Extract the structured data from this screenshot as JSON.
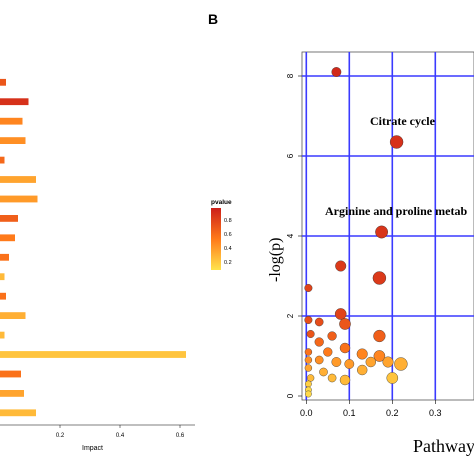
{
  "chart_data": [
    {
      "type": "bar",
      "orientation": "horizontal",
      "xlabel": "Impact",
      "x_ticks": [
        "0.2",
        "0.4",
        "0.6"
      ],
      "xlim": [
        0,
        0.65
      ],
      "bars": [
        {
          "value": 0.02,
          "pvalue": 0.7
        },
        {
          "value": 0.095,
          "pvalue": 0.9
        },
        {
          "value": 0.075,
          "pvalue": 0.45
        },
        {
          "value": 0.085,
          "pvalue": 0.4
        },
        {
          "value": 0.015,
          "pvalue": 0.6
        },
        {
          "value": 0.12,
          "pvalue": 0.3
        },
        {
          "value": 0.125,
          "pvalue": 0.35
        },
        {
          "value": 0.06,
          "pvalue": 0.65
        },
        {
          "value": 0.05,
          "pvalue": 0.5
        },
        {
          "value": 0.03,
          "pvalue": 0.55
        },
        {
          "value": 0.015,
          "pvalue": 0.2
        },
        {
          "value": 0.02,
          "pvalue": 0.55
        },
        {
          "value": 0.085,
          "pvalue": 0.25
        },
        {
          "value": 0.015,
          "pvalue": 0.2
        },
        {
          "value": 0.62,
          "pvalue": 0.15
        },
        {
          "value": 0.07,
          "pvalue": 0.55
        },
        {
          "value": 0.08,
          "pvalue": 0.3
        },
        {
          "value": 0.12,
          "pvalue": 0.2
        }
      ],
      "legend": {
        "title": "pvalue",
        "ticks": [
          "0.8",
          "0.6",
          "0.4",
          "0.2"
        ],
        "colors": [
          "#cc1f1a",
          "#ff7a1a",
          "#ffe44d"
        ]
      }
    },
    {
      "type": "scatter",
      "panel_label": "B",
      "xlabel": "Pathway",
      "ylabel": "-log(p)",
      "x_ticks": [
        "0.0",
        "0.1",
        "0.2",
        "0.3"
      ],
      "y_ticks": [
        "0",
        "2",
        "4",
        "6",
        "8"
      ],
      "xlim": [
        -0.01,
        0.39
      ],
      "ylim": [
        -0.1,
        8.6
      ],
      "grid": true,
      "grid_color": "#3a3aff",
      "annotations": [
        "Citrate cycle",
        "Arginine and proline metab"
      ],
      "points": [
        {
          "x": 0.07,
          "y": 8.1,
          "size": 0.45,
          "pvalue": 0.95
        },
        {
          "x": 0.21,
          "y": 6.35,
          "size": 0.75,
          "pvalue": 0.9
        },
        {
          "x": 0.175,
          "y": 4.1,
          "size": 0.7,
          "pvalue": 0.88
        },
        {
          "x": 0.08,
          "y": 3.25,
          "size": 0.55,
          "pvalue": 0.85
        },
        {
          "x": 0.17,
          "y": 2.95,
          "size": 0.75,
          "pvalue": 0.85
        },
        {
          "x": 0.005,
          "y": 2.7,
          "size": 0.3,
          "pvalue": 0.8
        },
        {
          "x": 0.08,
          "y": 2.05,
          "size": 0.6,
          "pvalue": 0.8
        },
        {
          "x": 0.005,
          "y": 1.9,
          "size": 0.3,
          "pvalue": 0.75
        },
        {
          "x": 0.03,
          "y": 1.85,
          "size": 0.35,
          "pvalue": 0.75
        },
        {
          "x": 0.09,
          "y": 1.8,
          "size": 0.6,
          "pvalue": 0.7
        },
        {
          "x": 0.01,
          "y": 1.55,
          "size": 0.3,
          "pvalue": 0.7
        },
        {
          "x": 0.06,
          "y": 1.5,
          "size": 0.4,
          "pvalue": 0.65
        },
        {
          "x": 0.17,
          "y": 1.5,
          "size": 0.65,
          "pvalue": 0.65
        },
        {
          "x": 0.03,
          "y": 1.35,
          "size": 0.4,
          "pvalue": 0.6
        },
        {
          "x": 0.09,
          "y": 1.2,
          "size": 0.5,
          "pvalue": 0.55
        },
        {
          "x": 0.005,
          "y": 1.1,
          "size": 0.25,
          "pvalue": 0.55
        },
        {
          "x": 0.05,
          "y": 1.1,
          "size": 0.4,
          "pvalue": 0.5
        },
        {
          "x": 0.13,
          "y": 1.05,
          "size": 0.55,
          "pvalue": 0.45
        },
        {
          "x": 0.17,
          "y": 1.0,
          "size": 0.6,
          "pvalue": 0.45
        },
        {
          "x": 0.005,
          "y": 0.9,
          "size": 0.25,
          "pvalue": 0.4
        },
        {
          "x": 0.03,
          "y": 0.9,
          "size": 0.35,
          "pvalue": 0.4
        },
        {
          "x": 0.07,
          "y": 0.85,
          "size": 0.45,
          "pvalue": 0.35
        },
        {
          "x": 0.1,
          "y": 0.8,
          "size": 0.45,
          "pvalue": 0.35
        },
        {
          "x": 0.15,
          "y": 0.85,
          "size": 0.5,
          "pvalue": 0.3
        },
        {
          "x": 0.19,
          "y": 0.85,
          "size": 0.55,
          "pvalue": 0.3
        },
        {
          "x": 0.22,
          "y": 0.8,
          "size": 0.75,
          "pvalue": 0.25
        },
        {
          "x": 0.005,
          "y": 0.7,
          "size": 0.25,
          "pvalue": 0.3
        },
        {
          "x": 0.04,
          "y": 0.6,
          "size": 0.35,
          "pvalue": 0.25
        },
        {
          "x": 0.13,
          "y": 0.65,
          "size": 0.5,
          "pvalue": 0.25
        },
        {
          "x": 0.01,
          "y": 0.45,
          "size": 0.25,
          "pvalue": 0.2
        },
        {
          "x": 0.06,
          "y": 0.45,
          "size": 0.35,
          "pvalue": 0.2
        },
        {
          "x": 0.09,
          "y": 0.4,
          "size": 0.5,
          "pvalue": 0.2
        },
        {
          "x": 0.2,
          "y": 0.45,
          "size": 0.6,
          "pvalue": 0.15
        },
        {
          "x": 0.005,
          "y": 0.3,
          "size": 0.2,
          "pvalue": 0.1
        },
        {
          "x": 0.005,
          "y": 0.15,
          "size": 0.2,
          "pvalue": 0.05
        },
        {
          "x": 0.005,
          "y": 0.05,
          "size": 0.2,
          "pvalue": 0.05
        }
      ]
    }
  ]
}
